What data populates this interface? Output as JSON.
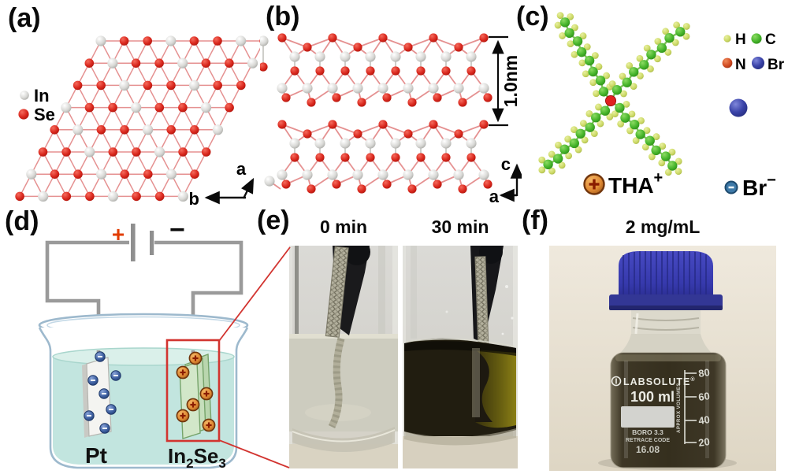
{
  "figure": {
    "panels": {
      "a": {
        "label": "(a)",
        "legend": [
          {
            "label": "In",
            "color": "#d6d6d4"
          },
          {
            "label": "Se",
            "color": "#d8261c"
          }
        ],
        "axis_a": "a",
        "axis_b": "b"
      },
      "b": {
        "label": "(b)",
        "thickness": "1.0nm",
        "axis_c": "c",
        "axis_a": "a"
      },
      "c": {
        "label": "(c)",
        "legend": [
          {
            "label": "H",
            "color": "#ccd966"
          },
          {
            "label": "C",
            "color": "#44b32a"
          },
          {
            "label": "N",
            "color": "#c8562c"
          },
          {
            "label": "Br",
            "color": "#3a43a8"
          }
        ],
        "cation": "THA",
        "cation_charge": "+",
        "anion": "Br",
        "anion_charge": "−"
      },
      "d": {
        "label": "(d)",
        "battery_plus": "+",
        "battery_minus": "−",
        "left_electrode": "Pt",
        "right_electrode_1": "In",
        "right_electrode_sub1": "2",
        "right_electrode_2": "Se",
        "right_electrode_sub2": "3"
      },
      "e": {
        "label": "(e)",
        "caption_left": "0 min",
        "caption_right": "30 min"
      },
      "f": {
        "label": "(f)",
        "caption": "2 mg/mL",
        "bottle": {
          "brand": "LABSOLUTE",
          "trademark": "®",
          "volume": "100 ml",
          "spec": "BORO 3.3",
          "retrace": "RETRACE CODE",
          "code": "16.08",
          "scale_label": "APPROX VOLUMES",
          "graduations": [
            "80",
            "60",
            "40",
            "20"
          ]
        }
      }
    },
    "colors": {
      "in_atom": "#d6d6d4",
      "se_atom": "#d8261c",
      "bond_red": "#e59191",
      "h_atom": "#ccd966",
      "c_atom": "#44b32a",
      "n_atom": "#c8562c",
      "br_atom": "#3a43a8",
      "bond_green": "#7cbf5a",
      "cation_orange": "#e08a34",
      "wire_gray": "#9a9a9a",
      "plus_red": "#e23c00",
      "beaker_line": "#9db9cd",
      "liquid_teal": "#c2e5df",
      "liquid_surface": "#daf0ea",
      "plate_green": "#d2e7c9",
      "plate_edge": "#76a36a",
      "ion_blue": "#3d5fa0",
      "accent_red": "#d23430",
      "cap_blue": "#3639ac"
    }
  }
}
